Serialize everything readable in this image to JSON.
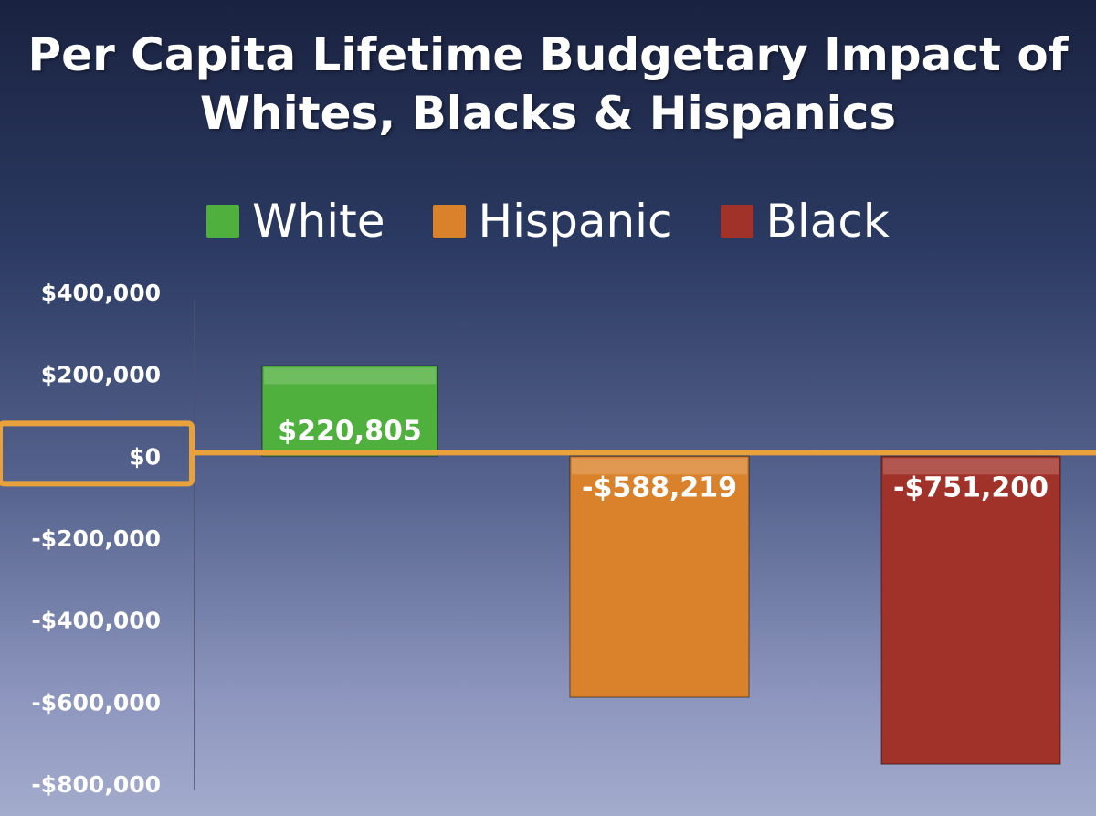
{
  "chart_data": {
    "type": "bar",
    "title": "Per Capita Lifetime Budgetary Impact of Whites, Blacks & Hispanics",
    "title_lines": [
      "Per Capita Lifetime Budgetary Impact of",
      "Whites, Blacks & Hispanics"
    ],
    "categories": [
      "White",
      "Hispanic",
      "Black"
    ],
    "values": [
      220805,
      -588219,
      -751200
    ],
    "data_labels": [
      "$220,805",
      "-$588,219",
      "-$751,200"
    ],
    "colors": [
      "#4fb03e",
      "#d9822b",
      "#a0322a"
    ],
    "legend": [
      {
        "label": "White",
        "color": "#4fb03e"
      },
      {
        "label": "Hispanic",
        "color": "#d9822b"
      },
      {
        "label": "Black",
        "color": "#a0322a"
      }
    ],
    "ylim": [
      -800000,
      400000
    ],
    "yticks": [
      400000,
      200000,
      0,
      -200000,
      -400000,
      -600000,
      -800000
    ],
    "ytick_labels": [
      "$400,000",
      "$200,000",
      "$0",
      "-$200,000",
      "-$400,000",
      "-$600,000",
      "-$800,000"
    ],
    "highlight": {
      "value": 0,
      "label": "$0",
      "color": "#e9a13b"
    },
    "xlabel": "",
    "ylabel": ""
  }
}
